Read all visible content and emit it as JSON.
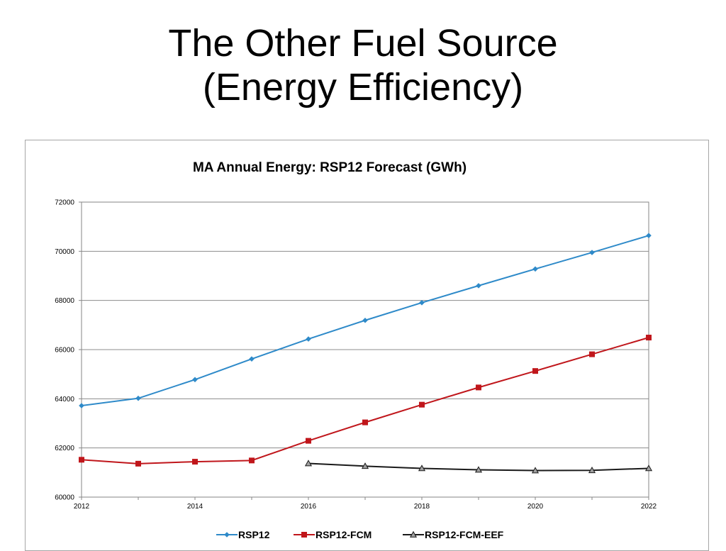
{
  "slide": {
    "title_line1": "The Other Fuel Source",
    "title_line2": "(Energy Efficiency)"
  },
  "chart_data": {
    "type": "line",
    "title": "MA Annual Energy: RSP12 Forecast (GWh)",
    "xlabel": "",
    "ylabel": "",
    "xlim": [
      2012,
      2022
    ],
    "ylim": [
      60000,
      72000
    ],
    "xticks": [
      "2012",
      "2014",
      "2016",
      "2018",
      "2020",
      "2022"
    ],
    "yticks": [
      "60000",
      "62000",
      "64000",
      "66000",
      "68000",
      "70000",
      "72000"
    ],
    "grid": "horizontal",
    "legend_position": "bottom",
    "series": [
      {
        "name": "RSP12",
        "color": "#2e8ac9",
        "marker": "diamond",
        "x": [
          2012,
          2013,
          2014,
          2015,
          2016,
          2017,
          2018,
          2019,
          2020,
          2021,
          2022
        ],
        "y": [
          63720,
          64020,
          64780,
          65620,
          66430,
          67190,
          67910,
          68600,
          69280,
          69950,
          70640
        ]
      },
      {
        "name": "RSP12-FCM",
        "color": "#c0161b",
        "marker": "square",
        "x": [
          2012,
          2013,
          2014,
          2015,
          2016,
          2017,
          2018,
          2019,
          2020,
          2021,
          2022
        ],
        "y": [
          61520,
          61360,
          61440,
          61490,
          62290,
          63040,
          63760,
          64460,
          65130,
          65810,
          66490
        ]
      },
      {
        "name": "RSP12-FCM-EEF",
        "color": "#1a1a1a",
        "marker": "triangle",
        "x": [
          2016,
          2017,
          2018,
          2019,
          2020,
          2021,
          2022
        ],
        "y": [
          61370,
          61260,
          61170,
          61110,
          61080,
          61090,
          61170
        ]
      }
    ]
  }
}
